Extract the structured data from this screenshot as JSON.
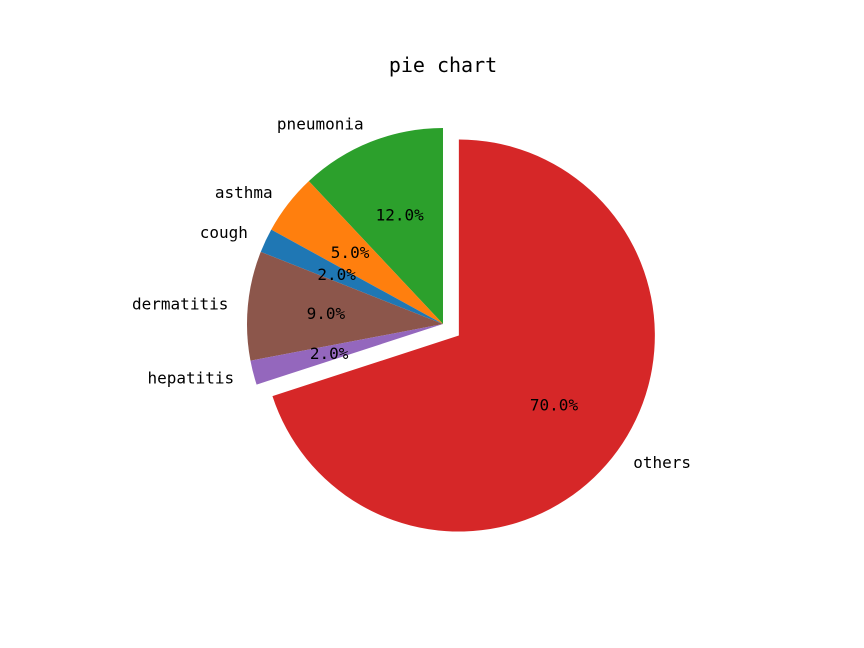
{
  "chart_data": {
    "type": "pie",
    "title": "pie chart",
    "start_angle_deg": 90,
    "direction": "counterclockwise",
    "slices": [
      {
        "label": "pneumonia",
        "value": 12,
        "pct_label": "12.0%",
        "color": "#2ca02c",
        "explode": 0
      },
      {
        "label": "asthma",
        "value": 5,
        "pct_label": "5.0%",
        "color": "#ff7f0e",
        "explode": 0
      },
      {
        "label": "cough",
        "value": 2,
        "pct_label": "2.0%",
        "color": "#1f77b4",
        "explode": 0
      },
      {
        "label": "dermatitis",
        "value": 9,
        "pct_label": "9.0%",
        "color": "#8c564b",
        "explode": 0
      },
      {
        "label": "hepatitis",
        "value": 2,
        "pct_label": "2.0%",
        "color": "#9467bd",
        "explode": 0
      },
      {
        "label": "others",
        "value": 70,
        "pct_label": "70.0%",
        "color": "#d62728",
        "explode": 0.1
      }
    ]
  }
}
